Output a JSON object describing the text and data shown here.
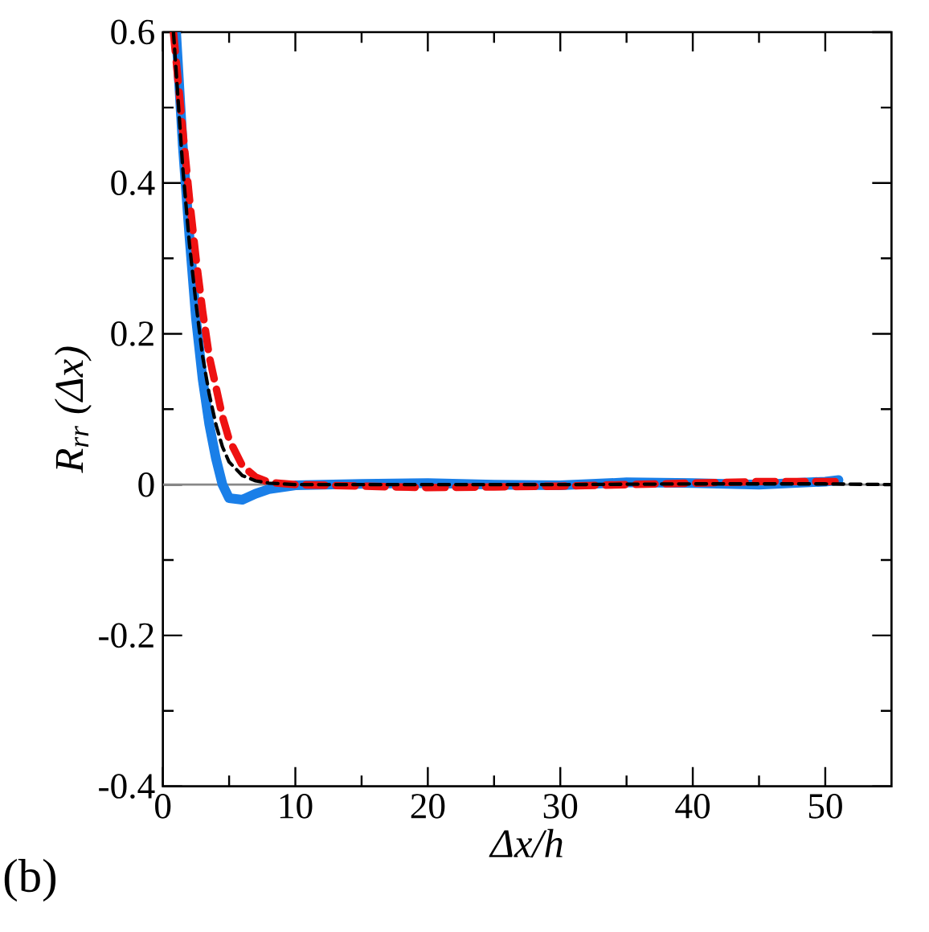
{
  "chart_data": {
    "type": "line",
    "xlabel": "Δx/h",
    "ylabel": "R$_{rr}$ (Δx)",
    "annotations": [
      "(b)"
    ],
    "xlim": [
      0,
      55
    ],
    "ylim": [
      -0.4,
      0.6
    ],
    "xticks": [
      0,
      10,
      20,
      30,
      40,
      50
    ],
    "yticks": [
      -0.4,
      -0.2,
      0,
      0.2,
      0.4,
      0.6
    ],
    "grid": false,
    "ref_lines": [
      {
        "axis": "y",
        "value": 0,
        "color": "#888888"
      }
    ],
    "series": [
      {
        "color": "#1a7fe8",
        "line_style": "solid",
        "x": [
          1,
          1.5,
          2,
          2.5,
          3,
          3.5,
          4,
          4.5,
          5,
          6,
          7,
          8,
          10,
          15,
          20,
          25,
          30,
          35,
          40,
          45,
          50,
          51
        ],
        "values": [
          0.6,
          0.45,
          0.33,
          0.22,
          0.14,
          0.08,
          0.035,
          0.0,
          -0.018,
          -0.02,
          -0.012,
          -0.006,
          -0.001,
          0.001,
          0.002,
          0.0,
          -0.001,
          0.003,
          0.002,
          0.0,
          0.004,
          0.006
        ]
      },
      {
        "color": "#ee1111",
        "line_style": "dashed",
        "x": [
          0.8,
          1.5,
          2,
          2.5,
          3,
          3.5,
          4,
          4.5,
          5,
          6,
          7,
          8,
          10,
          15,
          20,
          25,
          30,
          35,
          40,
          45,
          50,
          51
        ],
        "values": [
          0.6,
          0.47,
          0.38,
          0.3,
          0.23,
          0.17,
          0.13,
          0.09,
          0.06,
          0.025,
          0.01,
          0.003,
          0.0,
          -0.002,
          -0.004,
          -0.003,
          -0.002,
          0.0,
          0.002,
          0.004,
          0.004,
          0.004
        ]
      },
      {
        "color": "#000000",
        "line_style": "dashed",
        "x": [
          0.8,
          1.5,
          2,
          2.5,
          3,
          3.5,
          4,
          4.5,
          5,
          6,
          7,
          8,
          10,
          20,
          30,
          40,
          50,
          55
        ],
        "values": [
          0.6,
          0.42,
          0.32,
          0.24,
          0.17,
          0.12,
          0.08,
          0.05,
          0.03,
          0.012,
          0.005,
          0.002,
          0.0,
          0.0,
          0.0,
          0.001,
          0.001,
          0.0
        ]
      }
    ]
  }
}
